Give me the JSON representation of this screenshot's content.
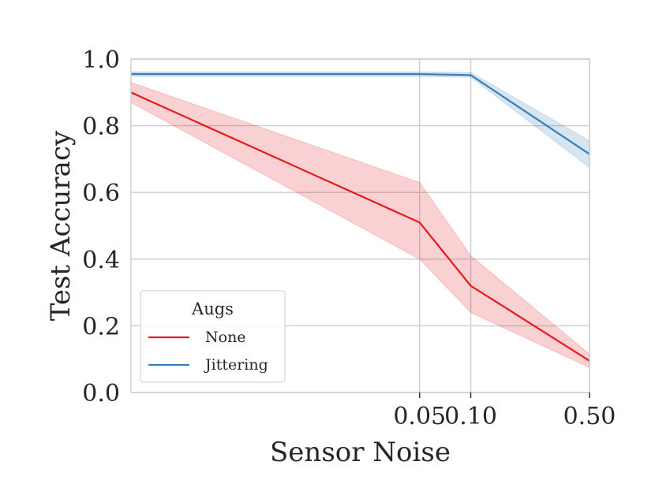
{
  "chart_data": {
    "type": "line",
    "title": "",
    "xlabel": "Sensor Noise",
    "ylabel": "Test Accuracy",
    "x": [
      0.0,
      0.05,
      0.1,
      0.5
    ],
    "xticks": [
      0.05,
      0.1,
      0.5
    ],
    "xtick_labels": [
      "0.05",
      "0.10",
      "0.50"
    ],
    "xlim": [
      0.0,
      0.5
    ],
    "x_scale": "symlog",
    "ylim": [
      0.0,
      1.0
    ],
    "yticks": [
      0.0,
      0.2,
      0.4,
      0.6,
      0.8,
      1.0
    ],
    "ytick_labels": [
      "0.0",
      "0.2",
      "0.4",
      "0.6",
      "0.8",
      "1.0"
    ],
    "grid": true,
    "legend": {
      "title": "Augs",
      "placement": "lower-left"
    },
    "series": [
      {
        "name": "None",
        "color": "#e41a1c",
        "values": [
          0.9,
          0.51,
          0.32,
          0.095
        ],
        "lower": [
          0.87,
          0.4,
          0.24,
          0.075
        ],
        "upper": [
          0.93,
          0.63,
          0.41,
          0.115
        ]
      },
      {
        "name": "Jittering",
        "color": "#377eb8",
        "values": [
          0.955,
          0.955,
          0.952,
          0.715
        ],
        "lower": [
          0.948,
          0.948,
          0.946,
          0.675
        ],
        "upper": [
          0.962,
          0.962,
          0.96,
          0.755
        ]
      }
    ]
  }
}
